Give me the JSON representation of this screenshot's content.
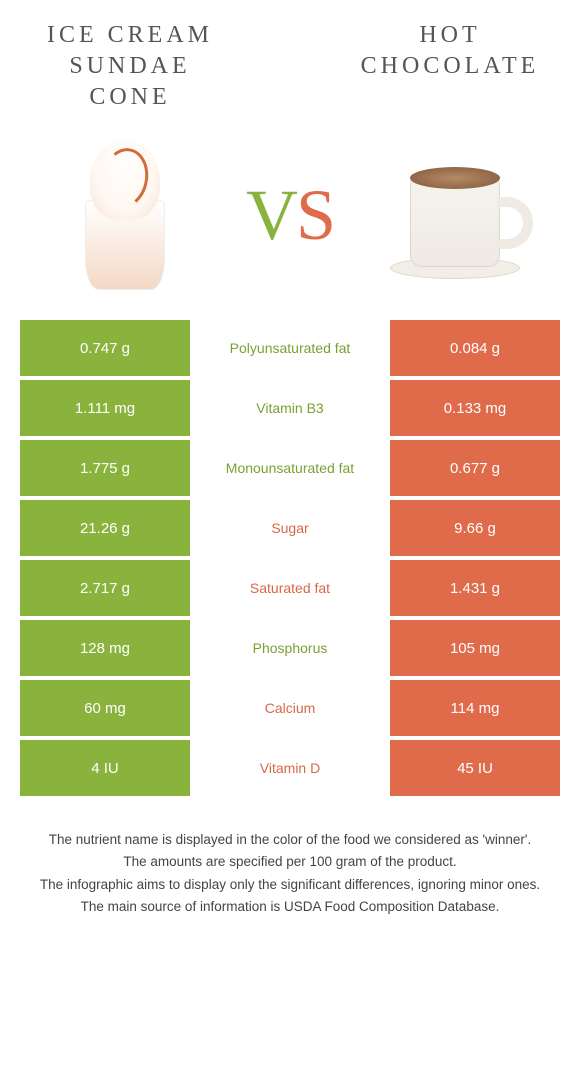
{
  "header": {
    "left_title": "Ice Cream sundae cone",
    "right_title": "Hot chocolate",
    "vs_v": "V",
    "vs_s": "S"
  },
  "colors": {
    "green": "#8ab33e",
    "orange": "#e06b4a",
    "label_green": "#7aa035",
    "label_orange": "#d86848",
    "text": "#555555",
    "background": "#ffffff"
  },
  "rows": [
    {
      "left": "0.747 g",
      "label": "Polyunsaturated fat",
      "right": "0.084 g",
      "winner": "green"
    },
    {
      "left": "1.111 mg",
      "label": "Vitamin B3",
      "right": "0.133 mg",
      "winner": "green"
    },
    {
      "left": "1.775 g",
      "label": "Monounsaturated fat",
      "right": "0.677 g",
      "winner": "green"
    },
    {
      "left": "21.26 g",
      "label": "Sugar",
      "right": "9.66 g",
      "winner": "orange"
    },
    {
      "left": "2.717 g",
      "label": "Saturated fat",
      "right": "1.431 g",
      "winner": "orange"
    },
    {
      "left": "128 mg",
      "label": "Phosphorus",
      "right": "105 mg",
      "winner": "green"
    },
    {
      "left": "60 mg",
      "label": "Calcium",
      "right": "114 mg",
      "winner": "orange"
    },
    {
      "left": "4 IU",
      "label": "Vitamin D",
      "right": "45 IU",
      "winner": "orange"
    }
  ],
  "footer": {
    "line1": "The nutrient name is displayed in the color of the food we considered as 'winner'.",
    "line2": "The amounts are specified per 100 gram of the product.",
    "line3": "The infographic aims to display only the significant differences, ignoring minor ones.",
    "line4": "The main source of information is USDA Food Composition Database."
  }
}
